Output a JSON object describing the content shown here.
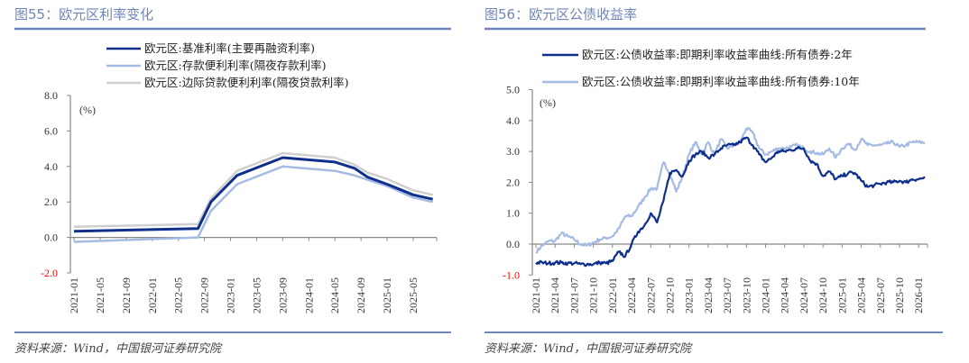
{
  "colors": {
    "accent": "#6f86b8",
    "dark_blue": "#0f2f8c",
    "light_blue": "#a6bbe4",
    "gray": "#cfcfcf",
    "negative_label": "#ff0000"
  },
  "chart_data": [
    {
      "type": "line",
      "title": "图55：欧元区利率变化",
      "ylabel": "(%)",
      "ylim": [
        -2.0,
        8.0
      ],
      "yticks": [
        "8.0",
        "6.0",
        "4.0",
        "2.0",
        "0.0",
        "-2.0"
      ],
      "xticks": [
        "2021-01",
        "2021-05",
        "2021-09",
        "2022-01",
        "2022-05",
        "2022-09",
        "2023-01",
        "2023-05",
        "2023-09",
        "2024-01",
        "2024-05",
        "2024-09",
        "2025-01",
        "2025-05"
      ],
      "legend_position": "top",
      "grid": false,
      "series": [
        {
          "name": "欧元区:边际贷款便利利率(隔夜贷款利率)",
          "color": "#cfcfcf",
          "points": [
            [
              "2021-01",
              0.6
            ],
            [
              "2022-08",
              0.75
            ],
            [
              "2022-10",
              2.2
            ],
            [
              "2023-02",
              3.75
            ],
            [
              "2023-09",
              4.75
            ],
            [
              "2024-05",
              4.5
            ],
            [
              "2024-08",
              4.1
            ],
            [
              "2024-10",
              3.65
            ],
            [
              "2025-01",
              3.3
            ],
            [
              "2025-05",
              2.65
            ],
            [
              "2025-08",
              2.4
            ]
          ]
        },
        {
          "name": "欧元区:存款便利利率(隔夜存款利率)",
          "color": "#a6bbe4",
          "points": [
            [
              "2021-01",
              -0.25
            ],
            [
              "2022-08",
              0.0
            ],
            [
              "2022-10",
              1.5
            ],
            [
              "2023-02",
              3.0
            ],
            [
              "2023-09",
              4.0
            ],
            [
              "2024-05",
              3.75
            ],
            [
              "2024-08",
              3.5
            ],
            [
              "2024-10",
              3.25
            ],
            [
              "2025-01",
              2.9
            ],
            [
              "2025-05",
              2.25
            ],
            [
              "2025-08",
              2.0
            ]
          ]
        },
        {
          "name": "欧元区:基准利率(主要再融资利率)",
          "color": "#0f2f8c",
          "points": [
            [
              "2021-01",
              0.35
            ],
            [
              "2022-08",
              0.5
            ],
            [
              "2022-10",
              2.0
            ],
            [
              "2023-02",
              3.5
            ],
            [
              "2023-09",
              4.5
            ],
            [
              "2024-05",
              4.25
            ],
            [
              "2024-08",
              3.9
            ],
            [
              "2024-10",
              3.4
            ],
            [
              "2025-01",
              3.0
            ],
            [
              "2025-05",
              2.4
            ],
            [
              "2025-08",
              2.15
            ]
          ]
        }
      ],
      "source": "资料来源：Wind，中国银河证券研究院"
    },
    {
      "type": "line",
      "title": "图56：欧元区公债收益率",
      "ylabel": "(%)",
      "ylim": [
        -1.0,
        5.0
      ],
      "yticks": [
        "5.0",
        "4.0",
        "3.0",
        "2.0",
        "1.0",
        "0.0",
        "-1.0"
      ],
      "xticks": [
        "2021-01",
        "2021-04",
        "2021-07",
        "2021-10",
        "2022-01",
        "2022-04",
        "2022-07",
        "2022-10",
        "2023-01",
        "2023-04",
        "2023-07",
        "2023-10",
        "2024-01",
        "2024-04",
        "2024-07",
        "2024-10",
        "2025-01",
        "2025-04",
        "2025-07",
        "2025-10",
        "2026-01"
      ],
      "legend_position": "top",
      "grid": false,
      "x_start": "2021-01",
      "x_frequency": "monthly",
      "series": [
        {
          "name": "欧元区:公债收益率:即期利率收益率曲线:所有债券:10年",
          "color": "#a6bbe4",
          "values": [
            -0.25,
            -0.05,
            0.1,
            0.1,
            0.35,
            0.25,
            0.15,
            0.0,
            -0.05,
            0.05,
            0.15,
            0.2,
            0.25,
            0.5,
            0.9,
            0.9,
            1.2,
            1.5,
            1.8,
            1.8,
            2.65,
            2.3,
            1.7,
            2.2,
            2.9,
            3.3,
            2.9,
            3.3,
            2.9,
            3.4,
            3.1,
            3.2,
            3.3,
            3.75,
            3.6,
            3.1,
            2.9,
            3.0,
            3.1,
            3.1,
            3.15,
            3.2,
            3.1,
            3.0,
            2.95,
            2.9,
            3.1,
            2.8,
            3.1,
            3.25,
            3.05,
            3.4,
            3.2,
            3.2,
            3.2,
            3.25,
            3.3,
            3.15,
            3.2,
            3.3,
            3.3,
            3.28
          ]
        },
        {
          "name": "欧元区:公债收益率:即期利率收益率曲线:所有债券:2年",
          "color": "#0f2f8c",
          "values": [
            -0.6,
            -0.6,
            -0.62,
            -0.6,
            -0.6,
            -0.62,
            -0.62,
            -0.65,
            -0.65,
            -0.65,
            -0.6,
            -0.62,
            -0.55,
            -0.25,
            -0.4,
            0.0,
            0.4,
            0.6,
            1.0,
            0.7,
            1.4,
            2.3,
            2.4,
            2.2,
            2.7,
            2.9,
            3.0,
            2.8,
            2.9,
            3.1,
            3.2,
            3.2,
            3.3,
            3.45,
            3.2,
            2.9,
            2.65,
            2.8,
            3.0,
            3.0,
            3.05,
            3.1,
            3.1,
            2.7,
            2.6,
            2.2,
            2.35,
            2.1,
            2.2,
            2.3,
            2.3,
            2.05,
            1.85,
            1.9,
            1.95,
            2.0,
            2.0,
            2.05,
            2.0,
            2.1,
            2.1,
            2.15
          ]
        }
      ],
      "source": "资料来源：Wind，中国银河证券研究院"
    }
  ]
}
